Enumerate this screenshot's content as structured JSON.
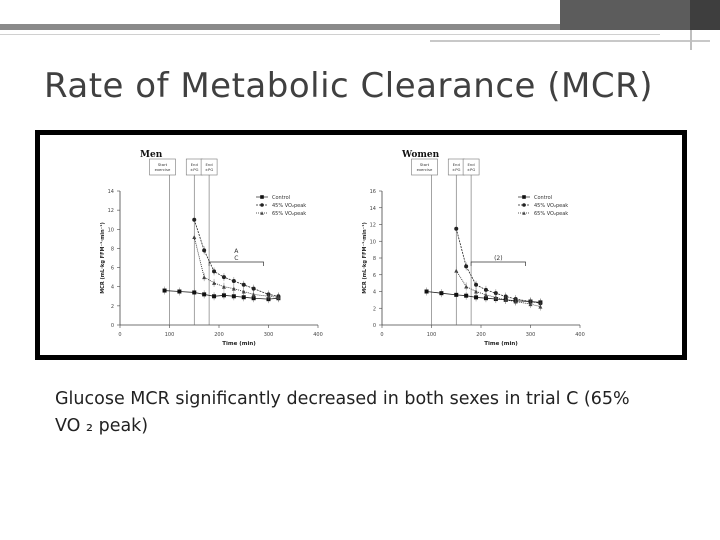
{
  "slide": {
    "title": "Rate of Metabolic Clearance (MCR)",
    "caption_line1": "Glucose MCR significantly decreased in both sexes in trial C  (65%",
    "caption_line2": "VO ₂ peak)"
  },
  "colors": {
    "accent_dark": "#3e3e3e",
    "accent_mid": "#5c5c5c",
    "accent_light": "#8a8a8a"
  },
  "chart_data": [
    {
      "type": "line",
      "title": "Men",
      "xlabel": "Time (min)",
      "ylabel": "MCR (mL·kg FFM⁻¹·min⁻¹)",
      "xlim": [
        0,
        400
      ],
      "ylim": [
        0,
        14
      ],
      "xticks": [
        "0",
        "100",
        "200",
        "300",
        "400"
      ],
      "yticks": [
        "0",
        "2",
        "4",
        "6",
        "8",
        "10",
        "12",
        "14"
      ],
      "event_labels": [
        "Start exercise",
        "End ±PG",
        "End ±PG"
      ],
      "event_x": [
        100,
        150,
        180
      ],
      "legend": [
        "Control",
        "45% VO₂peak",
        "65% VO₂peak"
      ],
      "legend_position": "top-right",
      "annotations": [
        "A",
        "C"
      ],
      "x": [
        90,
        120,
        150,
        170,
        190,
        210,
        230,
        250,
        270,
        300,
        320
      ],
      "series": [
        {
          "name": "Control",
          "values": [
            3.6,
            3.5,
            3.4,
            3.2,
            3.0,
            3.1,
            3.0,
            2.9,
            2.8,
            2.7,
            2.8
          ]
        },
        {
          "name": "45% VO₂peak",
          "values": [
            null,
            null,
            11.0,
            7.8,
            5.6,
            5.0,
            4.6,
            4.2,
            3.8,
            3.2,
            3.0
          ]
        },
        {
          "name": "65% VO₂peak",
          "values": [
            null,
            null,
            9.2,
            5.0,
            4.4,
            4.0,
            3.8,
            3.5,
            3.2,
            3.0,
            2.9
          ]
        }
      ]
    },
    {
      "type": "line",
      "title": "Women",
      "xlabel": "Time (min)",
      "ylabel": "MCR (mL·kg FFM⁻¹·min⁻¹)",
      "xlim": [
        0,
        400
      ],
      "ylim": [
        0,
        16
      ],
      "xticks": [
        "0",
        "100",
        "200",
        "300",
        "400"
      ],
      "yticks": [
        "0",
        "2",
        "4",
        "6",
        "8",
        "10",
        "12",
        "14",
        "16"
      ],
      "event_labels": [
        "Start exercise",
        "End ±PG",
        "End ±PG"
      ],
      "event_x": [
        100,
        150,
        180
      ],
      "legend": [
        "Control",
        "45% VO₂peak",
        "65% VO₂peak"
      ],
      "legend_position": "top-right",
      "annotations": [
        "(2)"
      ],
      "x": [
        90,
        120,
        150,
        170,
        190,
        210,
        230,
        250,
        270,
        300,
        320
      ],
      "series": [
        {
          "name": "Control",
          "values": [
            4.0,
            3.8,
            3.6,
            3.5,
            3.3,
            3.2,
            3.1,
            3.0,
            2.9,
            2.8,
            2.7
          ]
        },
        {
          "name": "45% VO₂peak",
          "values": [
            null,
            null,
            11.5,
            7.0,
            4.8,
            4.2,
            3.8,
            3.4,
            3.1,
            2.8,
            2.6
          ]
        },
        {
          "name": "65% VO₂peak",
          "values": [
            null,
            null,
            6.5,
            4.6,
            4.0,
            3.6,
            3.3,
            3.0,
            2.8,
            2.5,
            2.2
          ]
        }
      ]
    }
  ]
}
